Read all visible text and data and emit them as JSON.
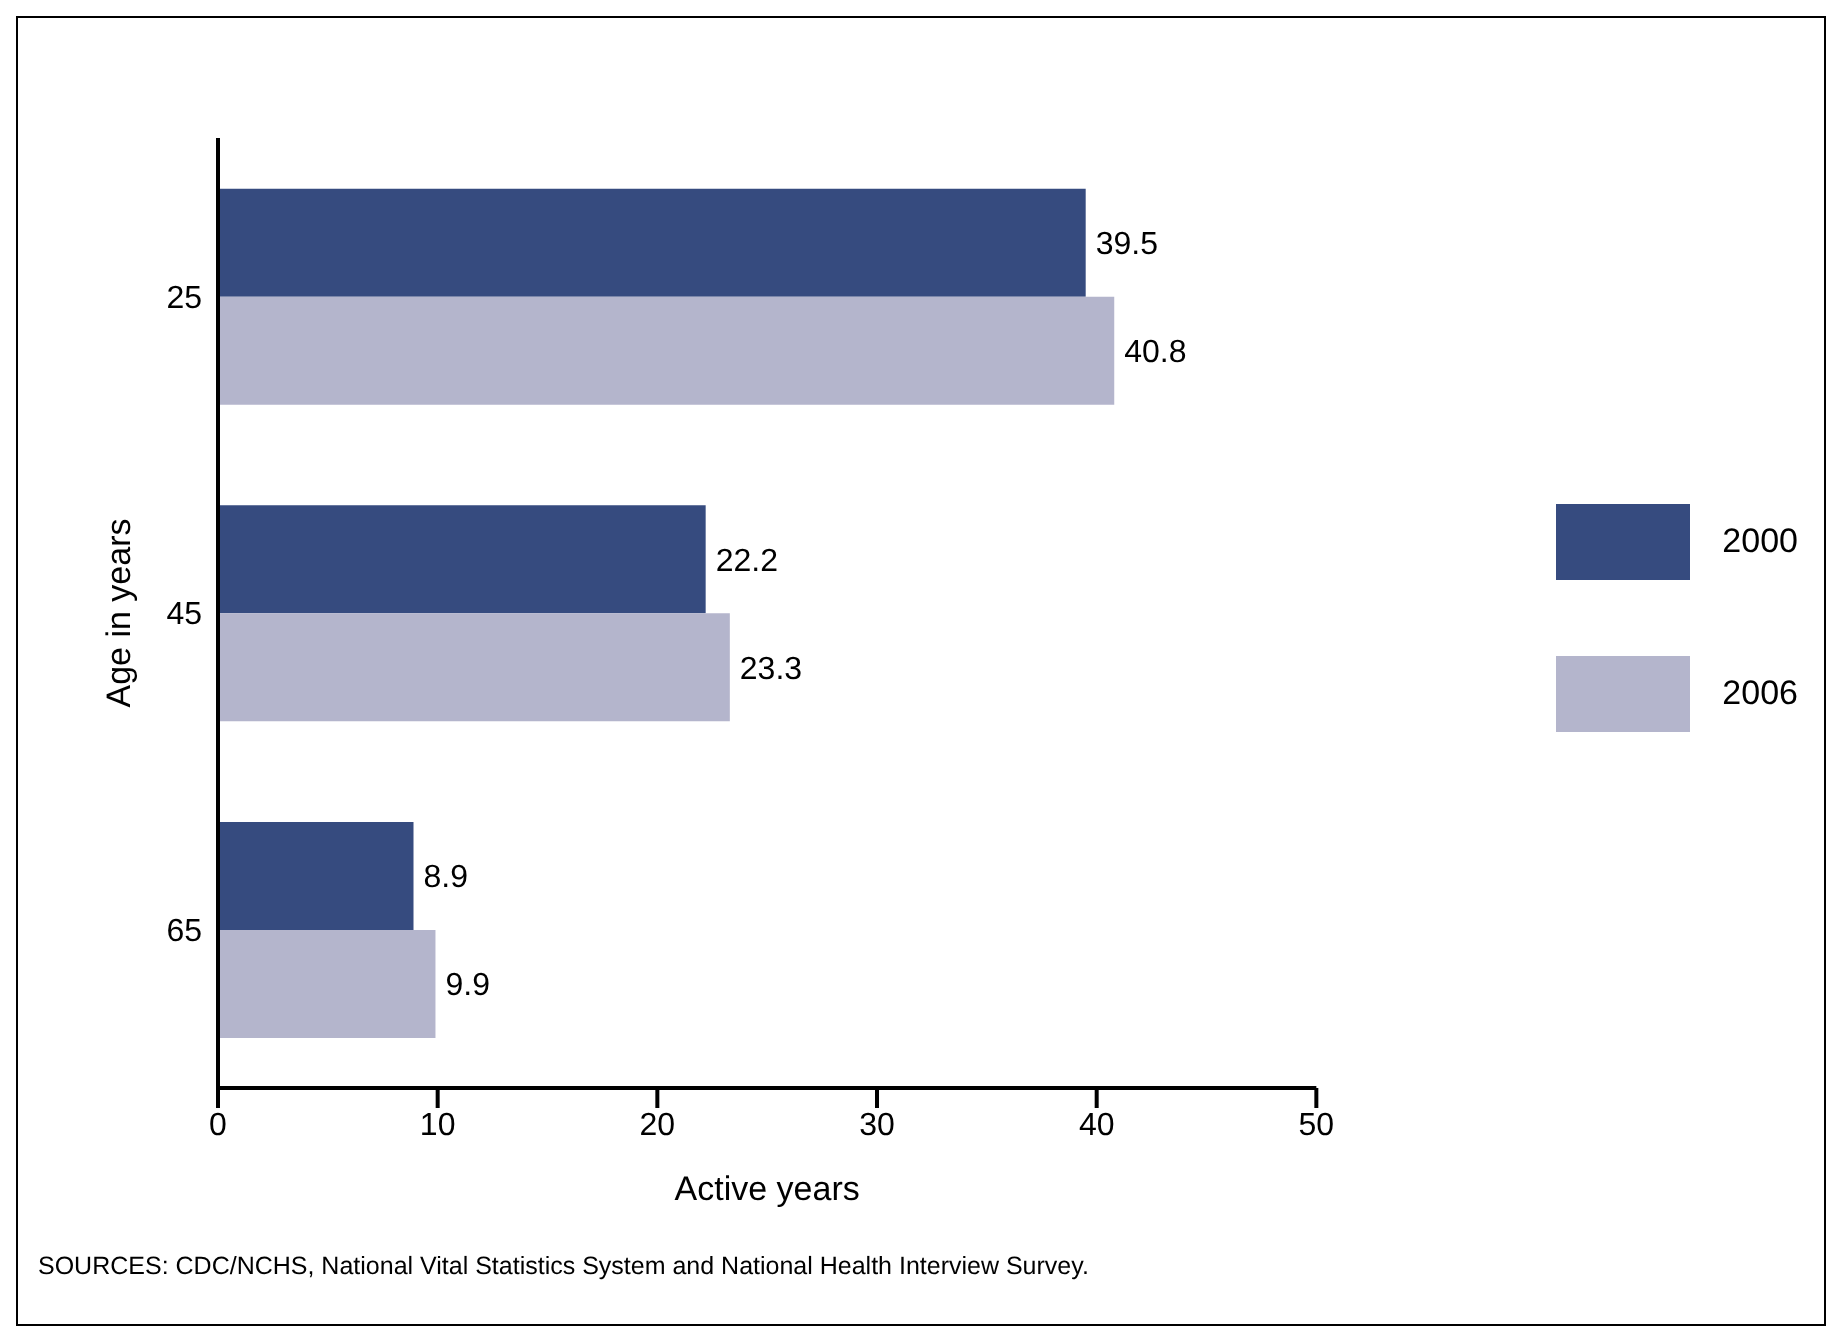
{
  "chart_data": {
    "type": "bar",
    "orientation": "horizontal",
    "categories": [
      "25",
      "45",
      "65"
    ],
    "series": [
      {
        "name": "2000",
        "color": "#364b7f",
        "values": [
          39.5,
          22.2,
          8.9
        ]
      },
      {
        "name": "2006",
        "color": "#b4b5cc",
        "values": [
          40.8,
          23.3,
          9.9
        ]
      }
    ],
    "xlim": [
      0,
      50
    ],
    "xticks": [
      0,
      10,
      20,
      30,
      40,
      50
    ],
    "xlabel": "Active years",
    "ylabel": "Age in years",
    "data_labels": true,
    "legend": "right",
    "grid": false,
    "annotations": [
      "SOURCES: CDC/NCHS, National Vital Statistics System and National Health Interview Survey."
    ]
  }
}
